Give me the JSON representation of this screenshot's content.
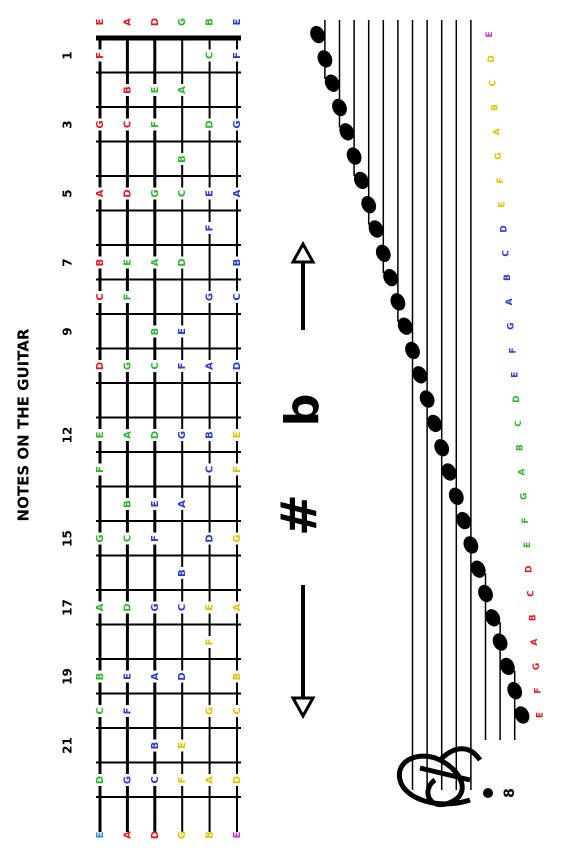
{
  "title": "NOTES ON THE GUITAR",
  "fret_numbers": [
    1,
    3,
    5,
    7,
    9,
    12,
    15,
    17,
    19,
    21
  ],
  "strings": [
    {
      "name": "E",
      "color": "#e31b23",
      "notes": [
        {
          "fret": 1,
          "note": "F",
          "color": "#e31b23"
        },
        {
          "fret": 3,
          "note": "G",
          "color": "#e31b23"
        },
        {
          "fret": 5,
          "note": "A",
          "color": "#e31b23"
        },
        {
          "fret": 7,
          "note": "B",
          "color": "#e31b23"
        },
        {
          "fret": 8,
          "note": "C",
          "color": "#e31b23"
        },
        {
          "fret": 10,
          "note": "D",
          "color": "#e31b23"
        },
        {
          "fret": 12,
          "note": "E",
          "color": "#2fb82f"
        },
        {
          "fret": 13,
          "note": "F",
          "color": "#2fb82f"
        },
        {
          "fret": 15,
          "note": "G",
          "color": "#2fb82f"
        },
        {
          "fret": 17,
          "note": "A",
          "color": "#2fb82f"
        },
        {
          "fret": 19,
          "note": "B",
          "color": "#2fb82f"
        },
        {
          "fret": 20,
          "note": "C",
          "color": "#2fb82f"
        },
        {
          "fret": 22,
          "note": "D",
          "color": "#2fb82f"
        }
      ]
    },
    {
      "name": "A",
      "color": "#e31b23",
      "notes": [
        {
          "fret": 2,
          "note": "B",
          "color": "#e31b23"
        },
        {
          "fret": 3,
          "note": "C",
          "color": "#e31b23"
        },
        {
          "fret": 5,
          "note": "D",
          "color": "#e31b23"
        },
        {
          "fret": 7,
          "note": "E",
          "color": "#2fb82f"
        },
        {
          "fret": 8,
          "note": "F",
          "color": "#2fb82f"
        },
        {
          "fret": 10,
          "note": "G",
          "color": "#2fb82f"
        },
        {
          "fret": 12,
          "note": "A",
          "color": "#2fb82f"
        },
        {
          "fret": 14,
          "note": "B",
          "color": "#2fb82f"
        },
        {
          "fret": 15,
          "note": "C",
          "color": "#2fb82f"
        },
        {
          "fret": 17,
          "note": "D",
          "color": "#2fb82f"
        },
        {
          "fret": 19,
          "note": "E",
          "color": "#2b3bd6"
        },
        {
          "fret": 20,
          "note": "F",
          "color": "#2b3bd6"
        },
        {
          "fret": 22,
          "note": "G",
          "color": "#2b3bd6"
        }
      ]
    },
    {
      "name": "D",
      "color": "#e31b23",
      "notes": [
        {
          "fret": 2,
          "note": "E",
          "color": "#2fb82f"
        },
        {
          "fret": 3,
          "note": "F",
          "color": "#2fb82f"
        },
        {
          "fret": 5,
          "note": "G",
          "color": "#2fb82f"
        },
        {
          "fret": 7,
          "note": "A",
          "color": "#2fb82f"
        },
        {
          "fret": 9,
          "note": "B",
          "color": "#2fb82f"
        },
        {
          "fret": 10,
          "note": "C",
          "color": "#2fb82f"
        },
        {
          "fret": 12,
          "note": "D",
          "color": "#2fb82f"
        },
        {
          "fret": 14,
          "note": "E",
          "color": "#2b3bd6"
        },
        {
          "fret": 15,
          "note": "F",
          "color": "#2b3bd6"
        },
        {
          "fret": 17,
          "note": "G",
          "color": "#2b3bd6"
        },
        {
          "fret": 19,
          "note": "A",
          "color": "#2b3bd6"
        },
        {
          "fret": 21,
          "note": "B",
          "color": "#2b3bd6"
        },
        {
          "fret": 22,
          "note": "C",
          "color": "#2b3bd6"
        }
      ]
    },
    {
      "name": "G",
      "color": "#2fb82f",
      "notes": [
        {
          "fret": 2,
          "note": "A",
          "color": "#2fb82f"
        },
        {
          "fret": 4,
          "note": "B",
          "color": "#2fb82f"
        },
        {
          "fret": 5,
          "note": "C",
          "color": "#2fb82f"
        },
        {
          "fret": 7,
          "note": "D",
          "color": "#2fb82f"
        },
        {
          "fret": 9,
          "note": "E",
          "color": "#2b3bd6"
        },
        {
          "fret": 10,
          "note": "F",
          "color": "#2b3bd6"
        },
        {
          "fret": 12,
          "note": "G",
          "color": "#2b3bd6"
        },
        {
          "fret": 14,
          "note": "A",
          "color": "#2b3bd6"
        },
        {
          "fret": 16,
          "note": "B",
          "color": "#2b3bd6"
        },
        {
          "fret": 17,
          "note": "C",
          "color": "#2b3bd6"
        },
        {
          "fret": 19,
          "note": "D",
          "color": "#2b3bd6"
        },
        {
          "fret": 21,
          "note": "E",
          "color": "#e0c400"
        },
        {
          "fret": 22,
          "note": "F",
          "color": "#e0c400"
        }
      ]
    },
    {
      "name": "B",
      "color": "#2fb82f",
      "notes": [
        {
          "fret": 1,
          "note": "C",
          "color": "#2fb82f"
        },
        {
          "fret": 3,
          "note": "D",
          "color": "#2fb82f"
        },
        {
          "fret": 5,
          "note": "E",
          "color": "#2b3bd6"
        },
        {
          "fret": 6,
          "note": "F",
          "color": "#2b3bd6"
        },
        {
          "fret": 8,
          "note": "G",
          "color": "#2b3bd6"
        },
        {
          "fret": 10,
          "note": "A",
          "color": "#2b3bd6"
        },
        {
          "fret": 12,
          "note": "B",
          "color": "#2b3bd6"
        },
        {
          "fret": 13,
          "note": "C",
          "color": "#2b3bd6"
        },
        {
          "fret": 15,
          "note": "D",
          "color": "#2b3bd6"
        },
        {
          "fret": 17,
          "note": "E",
          "color": "#e0c400"
        },
        {
          "fret": 18,
          "note": "F",
          "color": "#e0c400"
        },
        {
          "fret": 20,
          "note": "G",
          "color": "#e0c400"
        },
        {
          "fret": 22,
          "note": "A",
          "color": "#e0c400"
        }
      ]
    },
    {
      "name": "E",
      "color": "#2b3bd6",
      "notes": [
        {
          "fret": 1,
          "note": "F",
          "color": "#2b3bd6"
        },
        {
          "fret": 3,
          "note": "G",
          "color": "#2b3bd6"
        },
        {
          "fret": 5,
          "note": "A",
          "color": "#2b3bd6"
        },
        {
          "fret": 7,
          "note": "B",
          "color": "#2b3bd6"
        },
        {
          "fret": 8,
          "note": "C",
          "color": "#2b3bd6"
        },
        {
          "fret": 10,
          "note": "D",
          "color": "#2b3bd6"
        },
        {
          "fret": 12,
          "note": "E",
          "color": "#e0c400"
        },
        {
          "fret": 13,
          "note": "F",
          "color": "#e0c400"
        },
        {
          "fret": 15,
          "note": "G",
          "color": "#e0c400"
        },
        {
          "fret": 17,
          "note": "A",
          "color": "#e0c400"
        },
        {
          "fret": 19,
          "note": "B",
          "color": "#e0c400"
        },
        {
          "fret": 20,
          "note": "C",
          "color": "#e0c400"
        },
        {
          "fret": 22,
          "note": "D",
          "color": "#e0c400"
        }
      ]
    }
  ],
  "bottom_labels": [
    {
      "text": "E",
      "color": "#2a8fd8"
    },
    {
      "text": "A",
      "color": "#e31b23"
    },
    {
      "text": "D",
      "color": "#e31b23"
    },
    {
      "text": "G",
      "color": "#e0c400"
    },
    {
      "text": "B",
      "color": "#e0c400"
    },
    {
      "text": "E",
      "color": "#d030d0"
    }
  ],
  "symbols": {
    "flat": "b",
    "sharp": "#"
  },
  "clef_octave": "8",
  "staff_notes": [
    {
      "note": "E",
      "color": "#e31b23"
    },
    {
      "note": "F",
      "color": "#e31b23"
    },
    {
      "note": "G",
      "color": "#e31b23"
    },
    {
      "note": "A",
      "color": "#e31b23"
    },
    {
      "note": "B",
      "color": "#e31b23"
    },
    {
      "note": "C",
      "color": "#e31b23"
    },
    {
      "note": "D",
      "color": "#e31b23"
    },
    {
      "note": "E",
      "color": "#2fb82f"
    },
    {
      "note": "F",
      "color": "#2fb82f"
    },
    {
      "note": "G",
      "color": "#2fb82f"
    },
    {
      "note": "A",
      "color": "#2fb82f"
    },
    {
      "note": "B",
      "color": "#2fb82f"
    },
    {
      "note": "C",
      "color": "#2fb82f"
    },
    {
      "note": "D",
      "color": "#2fb82f"
    },
    {
      "note": "E",
      "color": "#2b3bd6"
    },
    {
      "note": "F",
      "color": "#2b3bd6"
    },
    {
      "note": "G",
      "color": "#2b3bd6"
    },
    {
      "note": "A",
      "color": "#2b3bd6"
    },
    {
      "note": "B",
      "color": "#2b3bd6"
    },
    {
      "note": "C",
      "color": "#2b3bd6"
    },
    {
      "note": "D",
      "color": "#2b3bd6"
    },
    {
      "note": "E",
      "color": "#e0c400"
    },
    {
      "note": "F",
      "color": "#e0c400"
    },
    {
      "note": "G",
      "color": "#e0c400"
    },
    {
      "note": "A",
      "color": "#e0c400"
    },
    {
      "note": "B",
      "color": "#e0c400"
    },
    {
      "note": "C",
      "color": "#e0c400"
    },
    {
      "note": "D",
      "color": "#e0c400"
    },
    {
      "note": "E",
      "color": "#d030d0"
    }
  ]
}
